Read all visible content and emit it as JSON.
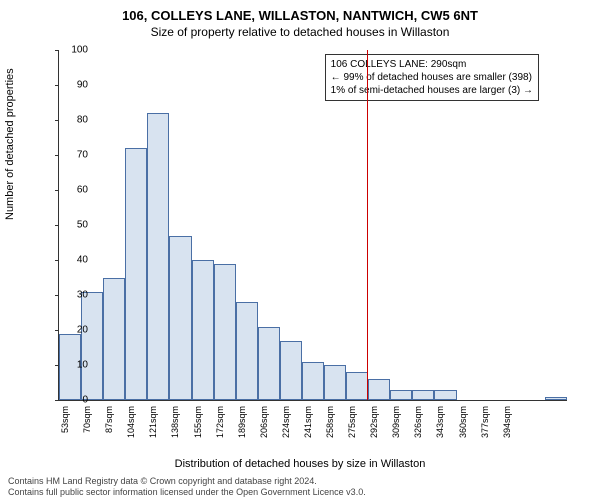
{
  "chart": {
    "type": "histogram",
    "title_line1": "106, COLLEYS LANE, WILLASTON, NANTWICH, CW5 6NT",
    "title_line2": "Size of property relative to detached houses in Willaston",
    "ylabel": "Number of detached properties",
    "xlabel": "Distribution of detached houses by size in Willaston",
    "ylim": [
      0,
      100
    ],
    "ytick_step": 10,
    "yticks": [
      0,
      10,
      20,
      30,
      40,
      50,
      60,
      70,
      80,
      90,
      100
    ],
    "x_start": 53,
    "x_step": 17,
    "x_count": 21,
    "xticks_labels": [
      "53sqm",
      "70sqm",
      "87sqm",
      "104sqm",
      "121sqm",
      "138sqm",
      "155sqm",
      "172sqm",
      "189sqm",
      "206sqm",
      "224sqm",
      "241sqm",
      "258sqm",
      "275sqm",
      "292sqm",
      "309sqm",
      "326sqm",
      "343sqm",
      "360sqm",
      "377sqm",
      "394sqm"
    ],
    "bar_values": [
      19,
      31,
      35,
      72,
      82,
      47,
      40,
      39,
      28,
      21,
      17,
      11,
      10,
      8,
      6,
      3,
      3,
      3,
      0,
      0,
      0,
      0,
      1
    ],
    "bar_fill": "#d8e3f0",
    "bar_border": "#4a6fa5",
    "background_color": "#ffffff",
    "marker_x_sqm": 290,
    "marker_color": "#cc0000",
    "annotation": {
      "line1": "106 COLLEYS LANE: 290sqm",
      "line2": "← 99% of detached houses are smaller (398)",
      "line3": "1% of semi-detached houses are larger (3) →"
    },
    "footer_line1": "Contains HM Land Registry data © Crown copyright and database right 2024.",
    "footer_line2": "Contains full public sector information licensed under the Open Government Licence v3.0."
  }
}
